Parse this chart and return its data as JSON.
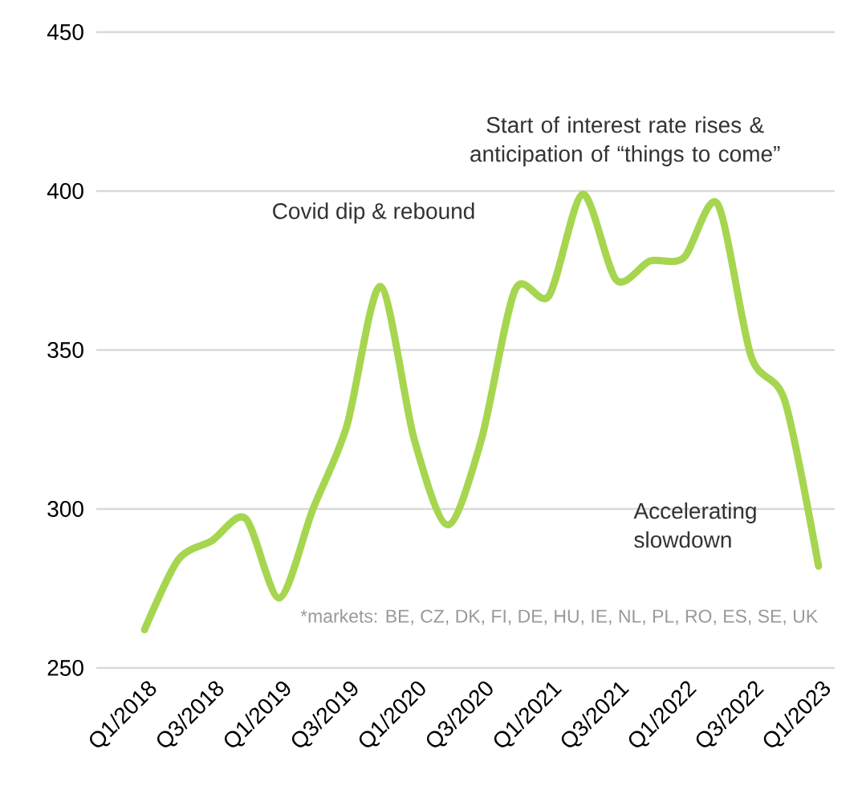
{
  "chart_data": {
    "type": "line",
    "categories": [
      "Q1/2018",
      null,
      "Q3/2018",
      null,
      "Q1/2019",
      null,
      "Q3/2019",
      null,
      "Q1/2020",
      null,
      "Q3/2020",
      null,
      "Q1/2021",
      null,
      "Q3/2021",
      null,
      "Q1/2022",
      null,
      "Q3/2022",
      null,
      "Q1/2023"
    ],
    "series": [
      {
        "color": "#a6d64f",
        "values": [
          262,
          284,
          290,
          297,
          272,
          300,
          326,
          370,
          322,
          295,
          322,
          369,
          367,
          399,
          372,
          378,
          379,
          396,
          348,
          334,
          282
        ]
      }
    ],
    "ylim": [
      250,
      450
    ],
    "yticks": [
      250,
      300,
      350,
      400,
      450
    ],
    "grid": "y",
    "marker": "none",
    "line_style": "solid",
    "annotations": [
      "Covid dip & rebound",
      "Start of interest rate rises & anticipation of “things to come”",
      "Accelerating slowdown",
      "*markets: BE, CZ, DK, FI, DE, HU, IE, NL, PL, RO, ES, SE, UK"
    ]
  }
}
